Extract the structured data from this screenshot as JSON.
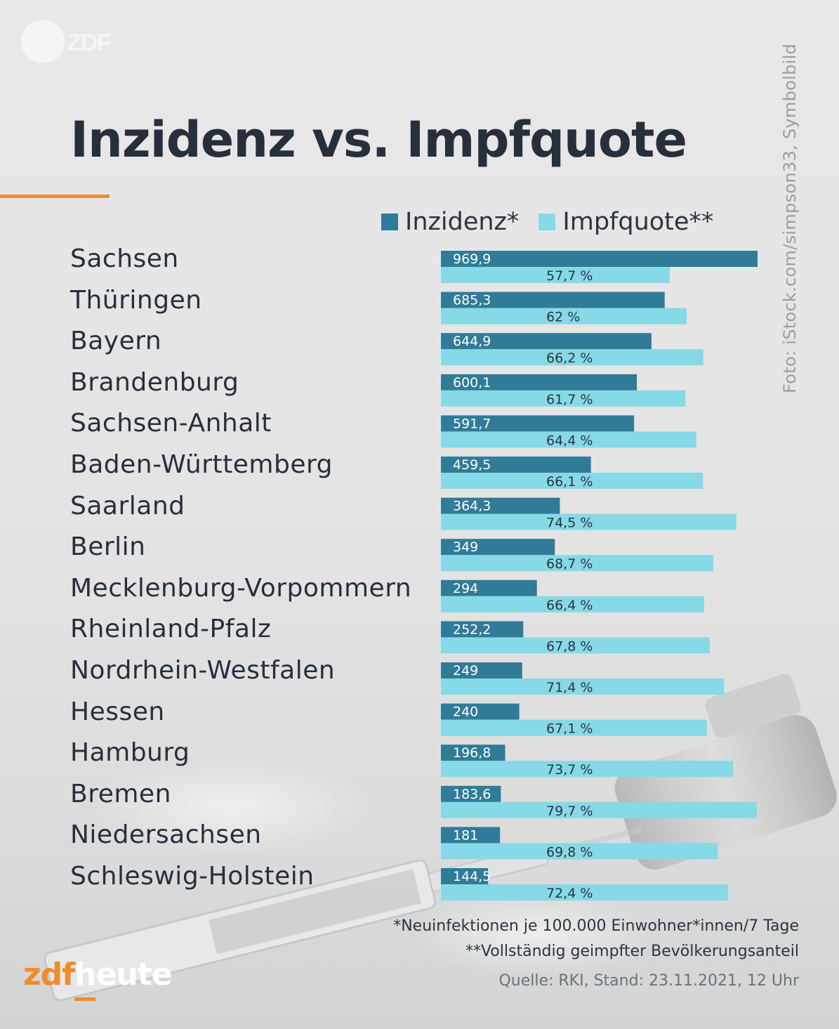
{
  "header": {
    "logo_text": "ZDF",
    "title": "Inzidenz vs. Impfquote",
    "photo_credit": "Foto: iStock.com/simpson33, Symbolbild"
  },
  "legend": {
    "inzidenz_label": "Inzidenz*",
    "impfquote_label": "Impfquote**"
  },
  "colors": {
    "inzidenz": "#307b98",
    "impfquote": "#86d9e6",
    "accent": "#f08c2c",
    "title": "#262f3c"
  },
  "chart_data": {
    "type": "bar",
    "orientation": "horizontal",
    "title": "Inzidenz vs. Impfquote",
    "categories": [
      "Sachsen",
      "Thüringen",
      "Bayern",
      "Brandenburg",
      "Sachsen-Anhalt",
      "Baden-Württemberg",
      "Saarland",
      "Berlin",
      "Mecklenburg-Vorpommern",
      "Rheinland-Pfalz",
      "Nordrhein-Westfalen",
      "Hessen",
      "Hamburg",
      "Bremen",
      "Niedersachsen",
      "Schleswig-Holstein"
    ],
    "series": [
      {
        "name": "Inzidenz*",
        "values": [
          969.9,
          685.3,
          644.9,
          600.1,
          591.7,
          459.5,
          364.3,
          349,
          294,
          252.2,
          249,
          240,
          196.8,
          183.6,
          181,
          144.5
        ],
        "labels": [
          "969,9",
          "685,3",
          "644,9",
          "600,1",
          "591,7",
          "459,5",
          "364,3",
          "349",
          "294",
          "252,2",
          "249",
          "240",
          "196,8",
          "183,6",
          "181",
          "144,5"
        ],
        "max": 969.9
      },
      {
        "name": "Impfquote**",
        "values": [
          57.7,
          62,
          66.2,
          61.7,
          64.4,
          66.1,
          74.5,
          68.7,
          66.4,
          67.8,
          71.4,
          67.1,
          73.7,
          79.7,
          69.8,
          72.4
        ],
        "labels": [
          "57,7 %",
          "62 %",
          "66,2 %",
          "61,7 %",
          "64,4 %",
          "66,1 %",
          "74,5 %",
          "68,7 %",
          "66,4 %",
          "67,8 %",
          "71,4 %",
          "67,1 %",
          "73,7 %",
          "79,7 %",
          "69,8 %",
          "72,4 %"
        ],
        "max": 79.7
      }
    ],
    "legend_position": "top-right",
    "grid": false
  },
  "footnotes": {
    "note1": "*Neuinfektionen je 100.000 Einwohner*innen/7 Tage",
    "note2": "**Vollständig geimpfter Bevölkerungsanteil",
    "source": "Quelle: RKI, Stand: 23.11.2021, 12 Uhr"
  },
  "brand": {
    "part1": "zdf",
    "part2": "heute"
  }
}
